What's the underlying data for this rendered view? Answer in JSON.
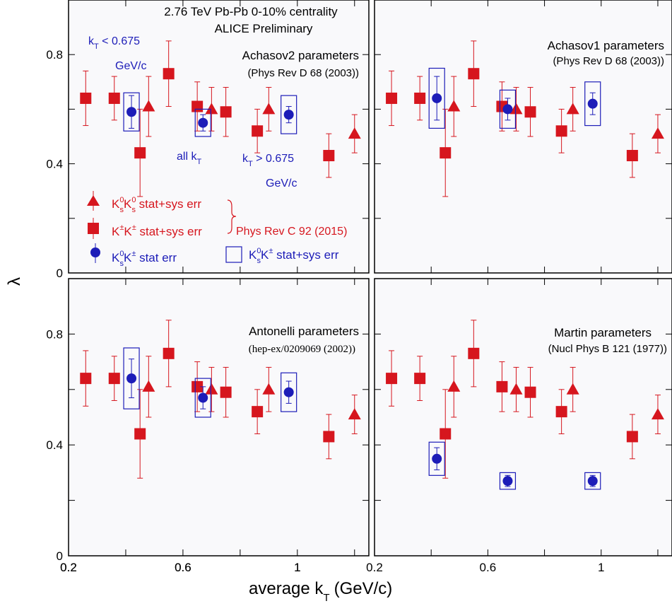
{
  "figure": {
    "ylabel": "λ",
    "xlabel": "average k",
    "xlabel_sub": "T",
    "xlabel_unit": "(GeV/c)",
    "colors": {
      "kk": "#d6161e",
      "k0k": "#1d1db8",
      "frame": "#000000",
      "panel_bg": "#f9f9fb"
    }
  },
  "header": {
    "energy": "2.76 TeV Pb-Pb   0-10% centrality",
    "collab": "ALICE Preliminary"
  },
  "annotations": {
    "low_kt_1": "k",
    "low_kt_sub": "T",
    "low_kt_2": " < 0.675",
    "low_kt_unit": "GeV/c",
    "all_kt_1": "all k",
    "all_kt_sub": "T",
    "high_kt_1": "k",
    "high_kt_sub": "T",
    "high_kt_2": " > 0.675",
    "high_kt_unit": "GeV/c"
  },
  "legend": {
    "tri_k": "K",
    "tri_sup1": "0",
    "tri_sub1": "s",
    "tri_k2": "K",
    "tri_sup2": "0",
    "tri_sub2": "s",
    "tri_text": " stat+sys err",
    "sq_k": "K",
    "sq_sup1": "±",
    "sq_k2": "K",
    "sq_sup2": "±",
    "sq_text": " stat+sys err",
    "circ_k": "K",
    "circ_sup1": "0",
    "circ_sub1": "s",
    "circ_k2": "K",
    "circ_sup2": "±",
    "circ_text": " stat err",
    "box_k": "K",
    "box_sup1": "0",
    "box_sub1": "s",
    "box_k2": "K",
    "box_sup2": "±",
    "box_text": " stat+sys err",
    "ref": "Phys Rev C 92 (2015)"
  },
  "chart_data": [
    {
      "type": "scatter",
      "panel": "top-left",
      "title": "Achasov2 parameters",
      "subtitle": "(Phys Rev D 68 (2003))",
      "xlim": [
        0.2,
        1.25
      ],
      "ylim": [
        0,
        1.0
      ],
      "xticks": [
        "0.2",
        "0.6",
        "1"
      ],
      "yticks": [
        "0",
        "0.4",
        "0.8"
      ],
      "series": [
        {
          "name": "K0sK0s stat+sys err",
          "marker": "triangle",
          "x": [
            0.48,
            0.7,
            0.9,
            1.2
          ],
          "y": [
            0.61,
            0.6,
            0.6,
            0.51
          ],
          "err": [
            0.11,
            0.08,
            0.08,
            0.07
          ]
        },
        {
          "name": "K±K± stat+sys err",
          "marker": "square",
          "x": [
            0.26,
            0.36,
            0.45,
            0.55,
            0.65,
            0.75,
            0.86,
            1.11
          ],
          "y": [
            0.64,
            0.64,
            0.44,
            0.73,
            0.61,
            0.59,
            0.52,
            0.43
          ],
          "err": [
            0.1,
            0.08,
            0.16,
            0.12,
            0.09,
            0.09,
            0.08,
            0.08
          ]
        },
        {
          "name": "K0sK± stat err",
          "marker": "circle",
          "x": [
            0.42,
            0.67,
            0.97
          ],
          "y": [
            0.59,
            0.55,
            0.58
          ],
          "err": [
            0.06,
            0.03,
            0.03
          ],
          "box": [
            0.07,
            0.05,
            0.07
          ]
        }
      ]
    },
    {
      "type": "scatter",
      "panel": "top-right",
      "title": "Achasov1 parameters",
      "subtitle": "(Phys Rev D 68 (2003))",
      "xlim": [
        0.2,
        1.25
      ],
      "ylim": [
        0,
        1.0
      ],
      "xticks": [],
      "yticks": [],
      "series": [
        {
          "name": "K0sK0s stat+sys err",
          "marker": "triangle",
          "x": [
            0.48,
            0.7,
            0.9,
            1.2
          ],
          "y": [
            0.61,
            0.6,
            0.6,
            0.51
          ],
          "err": [
            0.11,
            0.08,
            0.08,
            0.07
          ]
        },
        {
          "name": "K±K± stat+sys err",
          "marker": "square",
          "x": [
            0.26,
            0.36,
            0.45,
            0.55,
            0.65,
            0.75,
            0.86,
            1.11
          ],
          "y": [
            0.64,
            0.64,
            0.44,
            0.73,
            0.61,
            0.59,
            0.52,
            0.43
          ],
          "err": [
            0.1,
            0.08,
            0.16,
            0.12,
            0.09,
            0.09,
            0.08,
            0.08
          ]
        },
        {
          "name": "K0sK± stat err",
          "marker": "circle",
          "x": [
            0.42,
            0.67,
            0.97
          ],
          "y": [
            0.64,
            0.6,
            0.62
          ],
          "err": [
            0.08,
            0.04,
            0.04
          ],
          "box": [
            0.11,
            0.07,
            0.08
          ]
        }
      ]
    },
    {
      "type": "scatter",
      "panel": "bottom-left",
      "title": "Antonelli parameters",
      "subtitle": "(hep-ex/0209069 (2002))",
      "xlim": [
        0.2,
        1.25
      ],
      "ylim": [
        0,
        1.0
      ],
      "xticks": [
        "0.2",
        "0.6",
        "1"
      ],
      "yticks": [
        "0",
        "0.4",
        "0.8"
      ],
      "series": [
        {
          "name": "K0sK0s stat+sys err",
          "marker": "triangle",
          "x": [
            0.48,
            0.7,
            0.9,
            1.2
          ],
          "y": [
            0.61,
            0.6,
            0.6,
            0.51
          ],
          "err": [
            0.11,
            0.08,
            0.08,
            0.07
          ]
        },
        {
          "name": "K±K± stat+sys err",
          "marker": "square",
          "x": [
            0.26,
            0.36,
            0.45,
            0.55,
            0.65,
            0.75,
            0.86,
            1.11
          ],
          "y": [
            0.64,
            0.64,
            0.44,
            0.73,
            0.61,
            0.59,
            0.52,
            0.43
          ],
          "err": [
            0.1,
            0.08,
            0.16,
            0.12,
            0.09,
            0.09,
            0.08,
            0.08
          ]
        },
        {
          "name": "K0sK± stat err",
          "marker": "circle",
          "x": [
            0.42,
            0.67,
            0.97
          ],
          "y": [
            0.64,
            0.57,
            0.59
          ],
          "err": [
            0.07,
            0.04,
            0.04
          ],
          "box": [
            0.11,
            0.07,
            0.07
          ]
        }
      ]
    },
    {
      "type": "scatter",
      "panel": "bottom-right",
      "title": "Martin parameters",
      "subtitle": "(Nucl Phys B 121 (1977))",
      "xlim": [
        0.2,
        1.25
      ],
      "ylim": [
        0,
        1.0
      ],
      "xticks": [
        "0.2",
        "0.6",
        "1"
      ],
      "yticks": [],
      "series": [
        {
          "name": "K0sK0s stat+sys err",
          "marker": "triangle",
          "x": [
            0.48,
            0.7,
            0.9,
            1.2
          ],
          "y": [
            0.61,
            0.6,
            0.6,
            0.51
          ],
          "err": [
            0.11,
            0.08,
            0.08,
            0.07
          ]
        },
        {
          "name": "K±K± stat+sys err",
          "marker": "square",
          "x": [
            0.26,
            0.36,
            0.45,
            0.55,
            0.65,
            0.75,
            0.86,
            1.11
          ],
          "y": [
            0.64,
            0.64,
            0.44,
            0.73,
            0.61,
            0.59,
            0.52,
            0.43
          ],
          "err": [
            0.1,
            0.08,
            0.16,
            0.12,
            0.09,
            0.09,
            0.08,
            0.08
          ]
        },
        {
          "name": "K0sK± stat err",
          "marker": "circle",
          "x": [
            0.42,
            0.67,
            0.97
          ],
          "y": [
            0.35,
            0.27,
            0.27
          ],
          "err": [
            0.04,
            0.02,
            0.02
          ],
          "box": [
            0.06,
            0.03,
            0.03
          ]
        }
      ]
    }
  ]
}
